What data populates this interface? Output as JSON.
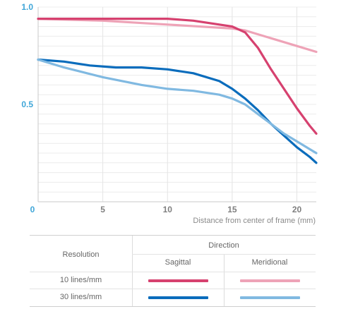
{
  "chart_data": {
    "type": "line",
    "xlabel": "Distance from center of frame (mm)",
    "ylabel": "",
    "xlim": [
      0,
      21.5
    ],
    "ylim": [
      0,
      1.0
    ],
    "xticks": [
      "0",
      "5",
      "10",
      "15",
      "20"
    ],
    "yticks": [
      "0.5",
      "1.0"
    ],
    "grid": true,
    "series": [
      {
        "name": "10 lines/mm Sagittal",
        "color": "#d6416f",
        "x": [
          0,
          2,
          5,
          8,
          10,
          12,
          14,
          15,
          16,
          17,
          18,
          19,
          20,
          21,
          21.5
        ],
        "y": [
          0.94,
          0.94,
          0.94,
          0.94,
          0.94,
          0.93,
          0.91,
          0.9,
          0.87,
          0.79,
          0.68,
          0.58,
          0.48,
          0.39,
          0.35
        ]
      },
      {
        "name": "10 lines/mm Meridional",
        "color": "#eea3b7",
        "x": [
          0,
          5,
          10,
          15,
          16,
          18,
          20,
          21.5
        ],
        "y": [
          0.94,
          0.93,
          0.91,
          0.89,
          0.88,
          0.84,
          0.8,
          0.77
        ]
      },
      {
        "name": "30 lines/mm Sagittal",
        "color": "#0a6cbc",
        "x": [
          0,
          2,
          4,
          6,
          8,
          10,
          12,
          14,
          15,
          16,
          17,
          18,
          19,
          20,
          21,
          21.5
        ],
        "y": [
          0.73,
          0.72,
          0.7,
          0.69,
          0.69,
          0.68,
          0.66,
          0.62,
          0.58,
          0.53,
          0.47,
          0.4,
          0.34,
          0.28,
          0.23,
          0.2
        ]
      },
      {
        "name": "30 lines/mm Meridional",
        "color": "#80b9e1",
        "x": [
          0,
          2,
          5,
          8,
          10,
          12,
          14,
          15,
          16,
          17,
          18,
          19,
          20,
          21,
          21.5
        ],
        "y": [
          0.73,
          0.69,
          0.64,
          0.6,
          0.58,
          0.57,
          0.55,
          0.53,
          0.5,
          0.45,
          0.4,
          0.35,
          0.31,
          0.27,
          0.25
        ]
      }
    ]
  },
  "legend": {
    "direction_header": "Direction",
    "resolution_header": "Resolution",
    "sagittal": "Sagittal",
    "meridional": "Meridional",
    "row1": "10 lines/mm",
    "row2": "30 lines/mm"
  }
}
